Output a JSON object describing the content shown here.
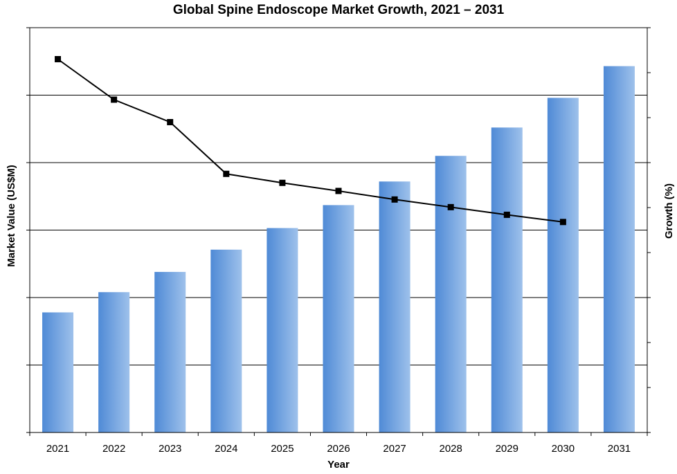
{
  "chart_data": {
    "type": "bar",
    "title": "Global Spine Endoscope Market Growth, 2021 – 2031",
    "xlabel": "Year",
    "ylabel": "Market Value (US$M)",
    "y2label": "Growth (%)",
    "categories": [
      "2021",
      "2022",
      "2023",
      "2024",
      "2025",
      "2026",
      "2027",
      "2028",
      "2029",
      "2030",
      "2031"
    ],
    "series": [
      {
        "type": "bar",
        "axis": "left",
        "values": [
          1.78,
          2.08,
          2.38,
          2.71,
          3.03,
          3.37,
          3.72,
          4.1,
          4.52,
          4.96,
          5.43
        ]
      },
      {
        "type": "line",
        "axis": "right",
        "values": [
          8.3,
          7.4,
          6.9,
          5.75,
          5.55,
          5.37,
          5.18,
          5.01,
          4.84,
          4.68,
          null
        ]
      }
    ],
    "ylim": [
      0,
      6
    ],
    "y2lim": [
      0,
      9
    ],
    "y_tick_labels_shown": false,
    "grid": "horizontal",
    "colors": {
      "bar_light": "#95bbe9",
      "bar_dark": "#4f8ad6",
      "line": "#000000",
      "grid": "#000000"
    }
  }
}
